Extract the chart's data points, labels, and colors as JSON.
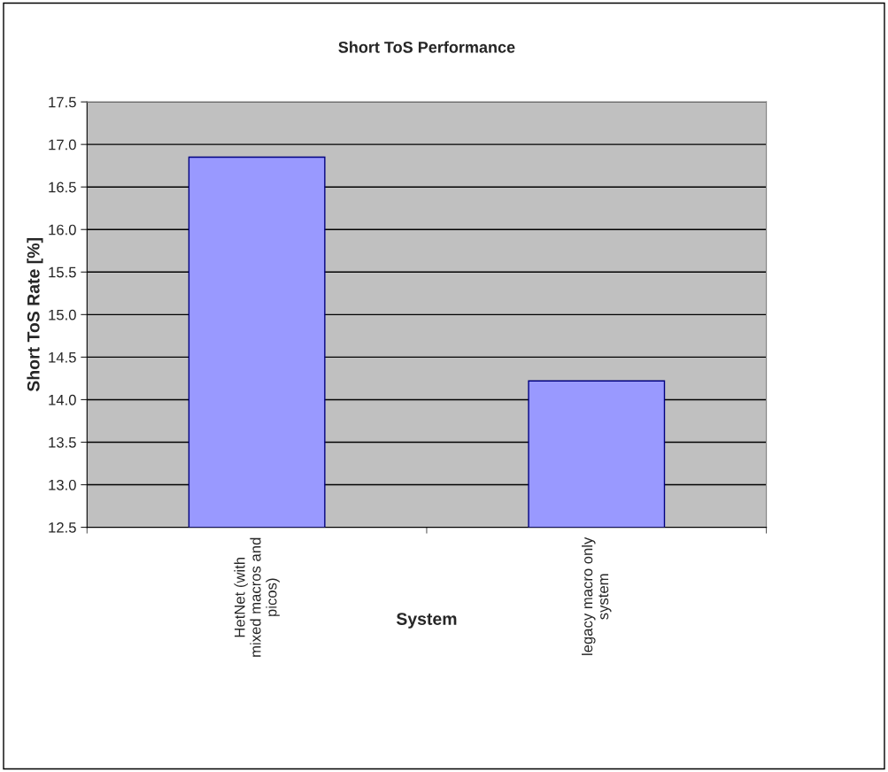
{
  "chart_data": {
    "type": "bar",
    "title": "Short ToS Performance",
    "xlabel": "System",
    "ylabel": "Short ToS Rate [%]",
    "categories": [
      "HetNet (with mixed macros and picos)",
      "legacy macro only system"
    ],
    "values": [
      16.85,
      14.22
    ],
    "color": "#9999ff",
    "ylim": [
      12.5,
      17.5
    ],
    "yticks": [
      {
        "value": 12.5,
        "label": "12.5"
      },
      {
        "value": 13.0,
        "label": "13.0"
      },
      {
        "value": 13.5,
        "label": "13.5"
      },
      {
        "value": 14.0,
        "label": "14.0"
      },
      {
        "value": 14.5,
        "label": "14.5"
      },
      {
        "value": 15.0,
        "label": "15.0"
      },
      {
        "value": 15.5,
        "label": "15.5"
      },
      {
        "value": 16.0,
        "label": "16.0"
      },
      {
        "value": 16.5,
        "label": "16.5"
      },
      {
        "value": 17.0,
        "label": "17.0"
      },
      {
        "value": 17.5,
        "label": "17.5"
      }
    ],
    "grid": "y",
    "legend": false
  }
}
